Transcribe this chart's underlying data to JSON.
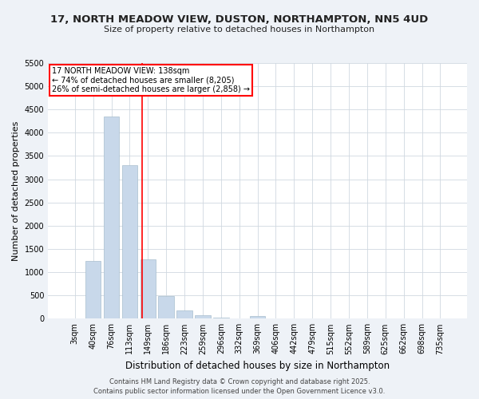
{
  "title1": "17, NORTH MEADOW VIEW, DUSTON, NORTHAMPTON, NN5 4UD",
  "title2": "Size of property relative to detached houses in Northampton",
  "xlabel": "Distribution of detached houses by size in Northampton",
  "ylabel": "Number of detached properties",
  "bar_labels": [
    "3sqm",
    "40sqm",
    "76sqm",
    "113sqm",
    "149sqm",
    "186sqm",
    "223sqm",
    "259sqm",
    "296sqm",
    "332sqm",
    "369sqm",
    "406sqm",
    "442sqm",
    "479sqm",
    "515sqm",
    "552sqm",
    "589sqm",
    "625sqm",
    "662sqm",
    "698sqm",
    "735sqm"
  ],
  "bar_values": [
    0,
    1250,
    4350,
    3300,
    1270,
    490,
    175,
    75,
    30,
    0,
    50,
    0,
    0,
    0,
    0,
    0,
    0,
    0,
    0,
    0,
    0
  ],
  "bar_color": "#c8d8ea",
  "bar_edge_color": "#a8bece",
  "vline_color": "red",
  "vline_pos": 3.68,
  "annotation_title": "17 NORTH MEADOW VIEW: 138sqm",
  "annotation_line1": "← 74% of detached houses are smaller (8,205)",
  "annotation_line2": "26% of semi-detached houses are larger (2,858) →",
  "ylim": [
    0,
    5500
  ],
  "yticks": [
    0,
    500,
    1000,
    1500,
    2000,
    2500,
    3000,
    3500,
    4000,
    4500,
    5000,
    5500
  ],
  "footer1": "Contains HM Land Registry data © Crown copyright and database right 2025.",
  "footer2": "Contains public sector information licensed under the Open Government Licence v3.0.",
  "bg_color": "#eef2f7",
  "plot_bg_color": "#ffffff",
  "grid_color": "#d0d8e0",
  "title1_fontsize": 9.5,
  "title2_fontsize": 8,
  "ylabel_fontsize": 8,
  "xlabel_fontsize": 8.5,
  "tick_fontsize": 7,
  "annotation_fontsize": 7,
  "footer_fontsize": 6
}
